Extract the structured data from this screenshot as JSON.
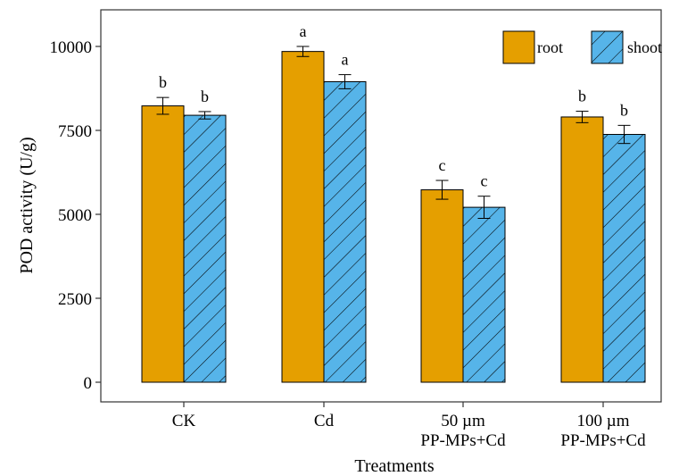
{
  "chart_data": {
    "type": "bar",
    "title": "",
    "xlabel": "Treatments",
    "ylabel": "POD activity (U/g)",
    "ylim": [
      0,
      11200
    ],
    "yticks": [
      0,
      2500,
      5000,
      7500,
      10000
    ],
    "ytick_labels": [
      "0",
      "2500",
      "5000",
      "7500",
      "10000"
    ],
    "grid": false,
    "legend_position": "top-right",
    "categories": [
      [
        "CK"
      ],
      [
        "Cd"
      ],
      [
        "50 µm",
        "PP-MPs+Cd"
      ],
      [
        "100 µm",
        "PP-MPs+Cd"
      ]
    ],
    "series": [
      {
        "name": "root",
        "color": "#E59F00",
        "pattern": "solid",
        "values": [
          8230,
          9850,
          5730,
          7900
        ],
        "errors": [
          250,
          150,
          280,
          170
        ],
        "labels": [
          "b",
          "a",
          "c",
          "b"
        ]
      },
      {
        "name": "shoot",
        "color": "#56B4E9",
        "pattern": "hatch",
        "values": [
          7950,
          8950,
          5210,
          7380
        ],
        "errors": [
          110,
          210,
          330,
          270
        ],
        "labels": [
          "b",
          "a",
          "c",
          "b"
        ]
      }
    ]
  }
}
